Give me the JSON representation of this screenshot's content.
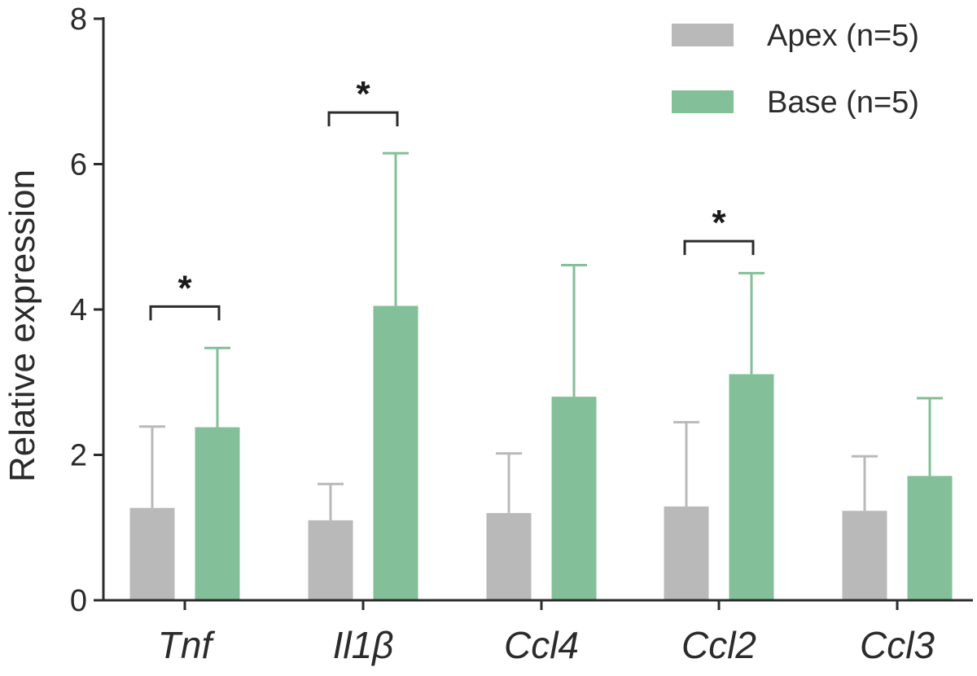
{
  "chart_data": {
    "type": "bar",
    "title": "",
    "xlabel": "",
    "ylabel": "Relative expression",
    "ylim": [
      0,
      8
    ],
    "yticks": [
      0,
      2,
      4,
      6,
      8
    ],
    "grid": false,
    "legend_position": "top-right",
    "categories": [
      "Tnf",
      "Il1β",
      "Ccl4",
      "Ccl2",
      "Ccl3"
    ],
    "series": [
      {
        "name": "Apex (n=5)",
        "color": "#b9b9b9",
        "values": [
          1.27,
          1.1,
          1.2,
          1.29,
          1.23
        ],
        "error": [
          1.12,
          0.5,
          0.82,
          1.16,
          0.75
        ]
      },
      {
        "name": "Base (n=5)",
        "color": "#83bf98",
        "values": [
          2.38,
          4.05,
          2.8,
          3.11,
          1.71
        ],
        "error": [
          1.09,
          2.1,
          1.81,
          1.39,
          1.07
        ]
      }
    ],
    "annotations": [
      {
        "category_index": 0,
        "label": "*",
        "level": 4.04
      },
      {
        "category_index": 1,
        "label": "*",
        "level": 6.71
      },
      {
        "category_index": 3,
        "label": "*",
        "level": 4.94
      }
    ]
  }
}
